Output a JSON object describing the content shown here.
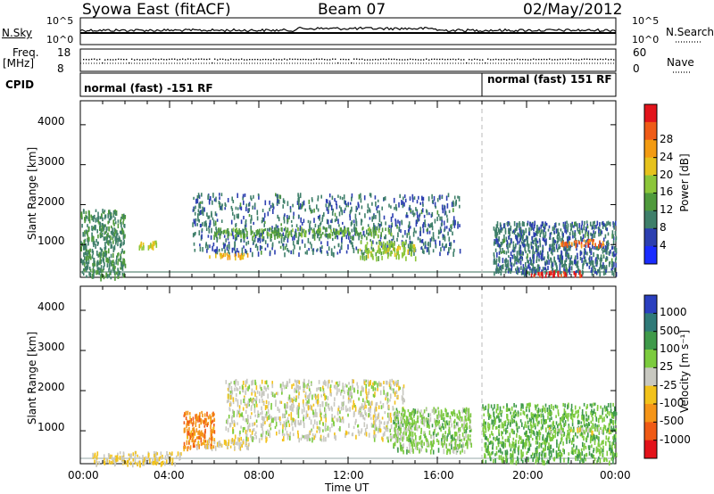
{
  "header": {
    "station": "Syowa East (fitACF)",
    "beam": "Beam 07",
    "date": "02/May/2012"
  },
  "top_panels": {
    "nsky_label": "N.Sky",
    "nsky_ticks": [
      "10^5",
      "10^0"
    ],
    "nsearch_label": "N.Search",
    "nsearch_ticks": [
      "10^5",
      "10^0"
    ],
    "freq_label_1": "Freq.",
    "freq_label_2": "[MHz]",
    "freq_ticks": [
      "18",
      "8"
    ],
    "nave_label": "Nave",
    "nave_ticks": [
      "60",
      "0"
    ],
    "cpid_label": "CPID",
    "cpid_segments": [
      "normal (fast) -151 RF",
      "normal (fast) 151 RF"
    ],
    "cpid_switch_time": "18:00"
  },
  "power_panel": {
    "ylabel": "Slant Range [km]",
    "yticks": [
      "1000",
      "2000",
      "3000",
      "4000"
    ],
    "colorbar_label": "Power [dB]",
    "colorbar_ticks": [
      "4",
      "8",
      "12",
      "16",
      "20",
      "24",
      "28"
    ],
    "colors": [
      "#1a2cff",
      "#2c3fb0",
      "#3f7f6a",
      "#4f9a3c",
      "#8cc63a",
      "#e6c21d",
      "#f39b12",
      "#ef5b17",
      "#e2141b"
    ]
  },
  "velocity_panel": {
    "ylabel": "Slant Range [km]",
    "yticks": [
      "1000",
      "2000",
      "3000",
      "4000"
    ],
    "colorbar_label": "Velocity [m s⁻¹]",
    "colorbar_ticks": [
      "1000",
      "500",
      "100",
      "25",
      "-25",
      "-100",
      "-500",
      "-1000"
    ],
    "colors": [
      "#2a3fbf",
      "#2f7a78",
      "#3f9a4a",
      "#7ccb3e",
      "#c8c8c0",
      "#f2c21b",
      "#f59518",
      "#ef5a15",
      "#e3121a"
    ]
  },
  "xaxis": {
    "label": "Time UT",
    "ticks": [
      "00:00",
      "04:00",
      "08:00",
      "12:00",
      "16:00",
      "20:00",
      "00:00"
    ]
  },
  "chart_data": {
    "type": "heatmap",
    "title": "Syowa East (fitACF) Beam 07 02/May/2012",
    "xlabel": "Time UT",
    "ylabel": "Slant Range [km]",
    "xlim": [
      "00:00",
      "24:00"
    ],
    "ylim": [
      180,
      4600
    ],
    "panels": [
      {
        "name": "Power",
        "colorbar_label": "Power [dB]",
        "clim": [
          0,
          32
        ],
        "scatter_regions": [
          {
            "t_start": 0.0,
            "t_end": 2.0,
            "r_min": 200,
            "r_max": 1900,
            "value": 10
          },
          {
            "t_start": 2.6,
            "t_end": 3.4,
            "r_min": 950,
            "r_max": 1150,
            "value": 18
          },
          {
            "t_start": 5.0,
            "t_end": 17.0,
            "r_min": 800,
            "r_max": 2300,
            "value": 8
          },
          {
            "t_start": 6.0,
            "t_end": 14.0,
            "r_min": 1250,
            "r_max": 1450,
            "value": 13
          },
          {
            "t_start": 5.5,
            "t_end": 7.5,
            "r_min": 700,
            "r_max": 800,
            "value": 22
          },
          {
            "t_start": 12.5,
            "t_end": 15.0,
            "r_min": 700,
            "r_max": 1100,
            "value": 16
          },
          {
            "t_start": 18.5,
            "t_end": 24.0,
            "r_min": 300,
            "r_max": 1600,
            "value": 8
          },
          {
            "t_start": 20.0,
            "t_end": 22.5,
            "r_min": 250,
            "r_max": 360,
            "value": 30
          },
          {
            "t_start": 21.5,
            "t_end": 23.5,
            "r_min": 1000,
            "r_max": 1150,
            "value": 26
          }
        ]
      },
      {
        "name": "Velocity",
        "colorbar_label": "Velocity [m s⁻¹]",
        "clim": [
          -1000,
          1000
        ],
        "scatter_regions": [
          {
            "t_start": 0.5,
            "t_end": 4.5,
            "r_min": 200,
            "r_max": 500,
            "value": -100
          },
          {
            "t_start": 4.6,
            "t_end": 6.0,
            "r_min": 600,
            "r_max": 1500,
            "value": -500
          },
          {
            "t_start": 5.2,
            "t_end": 7.6,
            "r_min": 600,
            "r_max": 800,
            "value": -100
          },
          {
            "t_start": 6.5,
            "t_end": 14.5,
            "r_min": 800,
            "r_max": 2300,
            "value": 0
          },
          {
            "t_start": 14.0,
            "t_end": 17.5,
            "r_min": 500,
            "r_max": 1600,
            "value": 200
          },
          {
            "t_start": 18.0,
            "t_end": 24.0,
            "r_min": 250,
            "r_max": 1700,
            "value": 300
          },
          {
            "t_start": 21.0,
            "t_end": 24.0,
            "r_min": 1000,
            "r_max": 1100,
            "value": 0
          }
        ]
      }
    ],
    "top_series": {
      "nsky_approx": 10000,
      "freq_mhz_approx": 11.5,
      "cpid_change_time": "18:00"
    }
  }
}
